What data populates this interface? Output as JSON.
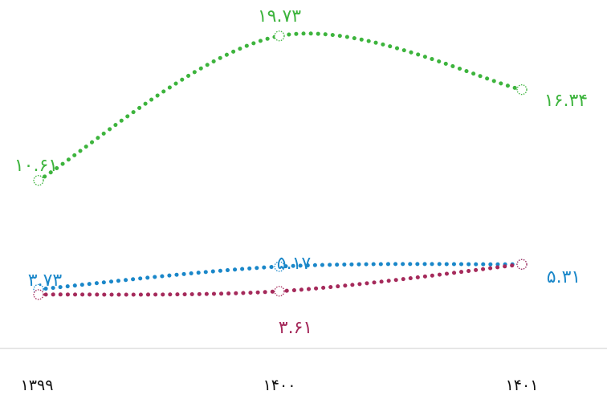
{
  "chart_data": {
    "type": "line",
    "categories": [
      "۱۳۹۹",
      "۱۴۰۰",
      "۱۴۰۱"
    ],
    "series": [
      {
        "color": "#3db43d",
        "values": [
          10.61,
          19.73,
          16.34
        ],
        "labels": [
          "۱۰.۶۱",
          "۱۹.۷۳",
          "۱۶.۳۴"
        ]
      },
      {
        "color": "#1a87c9",
        "values": [
          3.73,
          5.17,
          5.31
        ],
        "labels": [
          "۳.۷۳",
          "۵.۱۷",
          "۵.۳۱"
        ]
      },
      {
        "color": "#a52a5b",
        "values": [
          3.4,
          3.61,
          5.31
        ],
        "labels": [
          "",
          "۳.۶۱",
          ""
        ]
      }
    ],
    "title": "",
    "xlabel": "",
    "ylabel": "",
    "ylim": [
      0,
      22
    ],
    "grid": false,
    "legend": "none",
    "line_style": "dotted",
    "axis_color": "#cccccc"
  }
}
